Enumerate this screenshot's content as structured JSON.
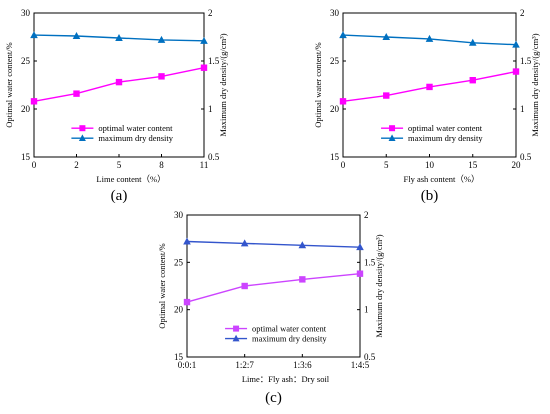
{
  "chart_data": [
    {
      "type": "line",
      "panel_label": "(a)",
      "xlabel": "Lime content（%）",
      "y_left_label": "Optimal water content/%",
      "y_right_label": "Maximum dry density/(g/cm³)",
      "categories": [
        "0",
        "2",
        "5",
        "8",
        "11"
      ],
      "y_left_ticks": [
        "15",
        "20",
        "25",
        "30"
      ],
      "y_right_ticks": [
        "0.5",
        "1",
        "1.5",
        "2"
      ],
      "y_left_range": [
        15,
        30
      ],
      "y_right_range": [
        0.5,
        2
      ],
      "grid": false,
      "legend_position": "bottom-center",
      "series": [
        {
          "name": "optimal water content",
          "axis": "left",
          "color": "#ff00ff",
          "marker": "square",
          "values": [
            20.8,
            21.6,
            22.8,
            23.4,
            24.3
          ]
        },
        {
          "name": "maximum dry density",
          "axis": "right",
          "color": "#0070c0",
          "marker": "triangle",
          "values": [
            1.77,
            1.76,
            1.74,
            1.72,
            1.71
          ]
        }
      ]
    },
    {
      "type": "line",
      "panel_label": "(b)",
      "xlabel": "Fly ash content（%）",
      "y_left_label": "Optimal water content/%",
      "y_right_label": "Maximum dry density/(g/cm³)",
      "categories": [
        "0",
        "5",
        "10",
        "15",
        "20"
      ],
      "y_left_ticks": [
        "15",
        "20",
        "25",
        "30"
      ],
      "y_right_ticks": [
        "0.5",
        "1",
        "1.5",
        "2"
      ],
      "y_left_range": [
        15,
        30
      ],
      "y_right_range": [
        0.5,
        2
      ],
      "grid": false,
      "legend_position": "bottom-center",
      "series": [
        {
          "name": "optimal water content",
          "axis": "left",
          "color": "#ff00ff",
          "marker": "square",
          "values": [
            20.8,
            21.4,
            22.3,
            23.0,
            23.9
          ]
        },
        {
          "name": "maximum dry density",
          "axis": "right",
          "color": "#0070c0",
          "marker": "triangle",
          "values": [
            1.77,
            1.75,
            1.73,
            1.69,
            1.67
          ]
        }
      ]
    },
    {
      "type": "line",
      "panel_label": "(c)",
      "xlabel": "Lime：Fly ash：Dry soil",
      "y_left_label": "Optimal water content/%",
      "y_right_label": "Maximum dry density/(g/cm³)",
      "categories": [
        "0:0:1",
        "1:2:7",
        "1:3:6",
        "1:4:5"
      ],
      "y_left_ticks": [
        "15",
        "20",
        "25",
        "30"
      ],
      "y_right_ticks": [
        "0.5",
        "1",
        "1.5",
        "2"
      ],
      "y_left_range": [
        15,
        30
      ],
      "y_right_range": [
        0.5,
        2
      ],
      "grid": false,
      "legend_position": "bottom-center",
      "series": [
        {
          "name": "optimal water content",
          "axis": "left",
          "color": "#cc44ff",
          "marker": "square",
          "values": [
            20.8,
            22.5,
            23.2,
            23.8
          ]
        },
        {
          "name": "maximum dry density",
          "axis": "right",
          "color": "#3355cc",
          "marker": "triangle",
          "values": [
            1.72,
            1.7,
            1.68,
            1.66
          ]
        }
      ]
    }
  ]
}
